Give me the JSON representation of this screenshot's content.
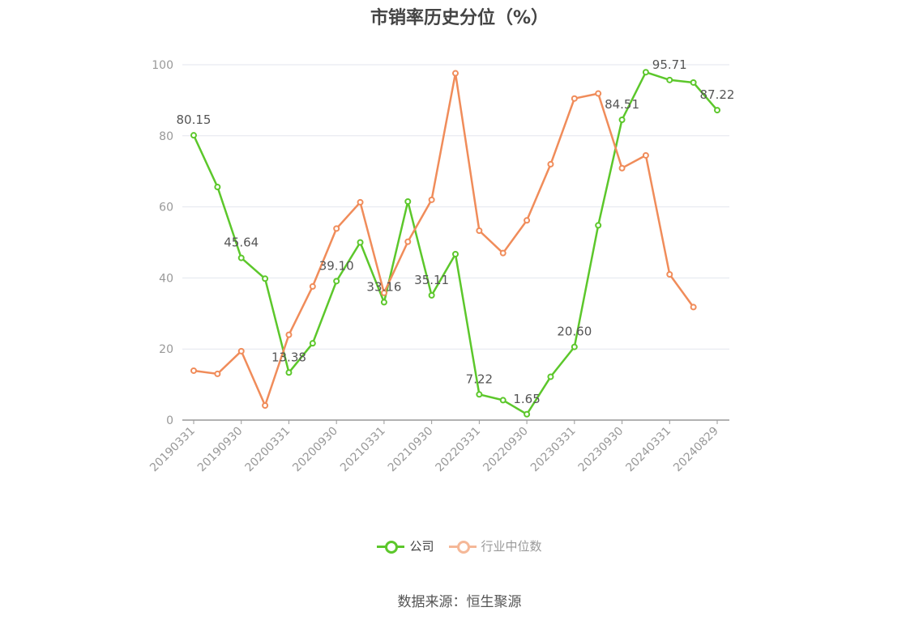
{
  "chart_data": {
    "type": "line",
    "title": "市销率历史分位（%）",
    "ylim": [
      0,
      100
    ],
    "yticks": [
      0,
      20,
      40,
      60,
      80,
      100
    ],
    "grid": true,
    "legend_position": "bottom-center",
    "x": [
      "20190331",
      "20190630",
      "20190930",
      "20191231",
      "20200331",
      "20200630",
      "20200930",
      "20201231",
      "20210331",
      "20210630",
      "20210930",
      "20211231",
      "20220331",
      "20220630",
      "20220930",
      "20221231",
      "20230331",
      "20230630",
      "20230930",
      "20231231",
      "20240331",
      "20240630",
      "20240829"
    ],
    "xtick_labels": [
      "20190331",
      "20190930",
      "20200331",
      "20200930",
      "20210331",
      "20210930",
      "20220331",
      "20220930",
      "20230331",
      "20230930",
      "20240331",
      "20240829"
    ],
    "series": [
      {
        "name": "公司",
        "color": "#5cc72b",
        "values": [
          80.15,
          65.6,
          45.64,
          39.8,
          13.38,
          21.6,
          39.1,
          50.0,
          33.16,
          61.5,
          35.11,
          46.7,
          7.22,
          5.6,
          1.65,
          12.2,
          20.6,
          54.8,
          84.51,
          97.9,
          95.71,
          95.0,
          87.22
        ],
        "labels": {
          "0": "80.15",
          "2": "45.64",
          "4": "13.38",
          "6": "39.10",
          "8": "33.16",
          "10": "35.11",
          "12": "7.22",
          "14": "1.65",
          "16": "20.60",
          "18": "84.51",
          "20": "95.71",
          "22": "87.22"
        }
      },
      {
        "name": "行业中位数",
        "color": "#f08c5a",
        "values": [
          13.9,
          13.0,
          19.4,
          4.1,
          24.0,
          37.6,
          53.9,
          61.3,
          35.8,
          50.2,
          62.0,
          97.6,
          53.3,
          47.0,
          56.2,
          72.0,
          90.5,
          91.9,
          70.9,
          74.5,
          41.0,
          31.8,
          null
        ]
      }
    ]
  },
  "legend": [
    {
      "name": "公司",
      "color": "#5cc72b",
      "text_color": "#444444"
    },
    {
      "name": "行业中位数",
      "color": "#f5b898",
      "text_color": "#999999"
    }
  ],
  "source": "数据来源：恒生聚源"
}
